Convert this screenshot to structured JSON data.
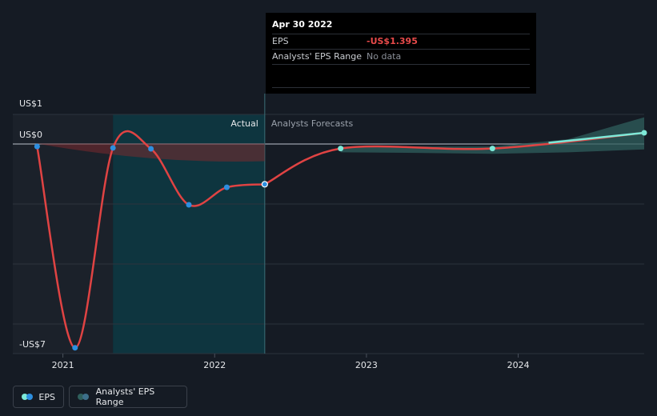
{
  "tooltip": {
    "date": "Apr 30 2022",
    "rows": [
      {
        "label": "EPS",
        "value": "-US$1.395"
      },
      {
        "label": "Analysts' EPS Range",
        "value": "No data"
      }
    ]
  },
  "sections": {
    "actual": "Actual",
    "forecast": "Analysts Forecasts"
  },
  "legend": {
    "eps": "EPS",
    "range": "Analysts' EPS Range"
  },
  "colors": {
    "eps_line": "#e04343",
    "eps_dot_actual": "#2d8fe0",
    "eps_dot_forecast": "#7de9d8",
    "forecast_band": "#2f5f5c",
    "negative_band": "#7a2a2e",
    "highlight": "#0d3a44"
  },
  "chart_data": {
    "type": "line",
    "y_tick_labels": [
      "US$1",
      "US$0",
      "-US$7"
    ],
    "y_ticks": [
      1,
      0,
      -7
    ],
    "ylim": [
      -7.2,
      1.0
    ],
    "x_tick_labels": [
      "2021",
      "2022",
      "2023",
      "2024"
    ],
    "x_ticks": [
      2021,
      2022,
      2023,
      2024
    ],
    "xlim": [
      2020.67,
      2024.83
    ],
    "series": [
      {
        "name": "EPS",
        "x": [
          2020.83,
          2021.08,
          2021.33,
          2021.58,
          2021.83,
          2022.08,
          2022.33
        ],
        "y": [
          -0.1,
          -7.0,
          -0.15,
          -0.18,
          -2.1,
          -1.5,
          -1.395
        ],
        "kind": "actual"
      },
      {
        "name": "EPS",
        "x": [
          2022.33,
          2022.83,
          2023.83,
          2024.83
        ],
        "y": [
          -1.395,
          -0.17,
          -0.17,
          0.37
        ],
        "kind": "forecast"
      }
    ],
    "forecast_range": {
      "x": [
        2022.83,
        2023.33,
        2023.83,
        2024.33,
        2024.83
      ],
      "low": [
        -0.3,
        -0.32,
        -0.35,
        -0.3,
        -0.2
      ],
      "high": [
        -0.1,
        -0.1,
        -0.1,
        0.15,
        0.9
      ]
    },
    "highlight_range": [
      2021.33,
      2022.33
    ],
    "tooltip_x": 2022.33
  }
}
